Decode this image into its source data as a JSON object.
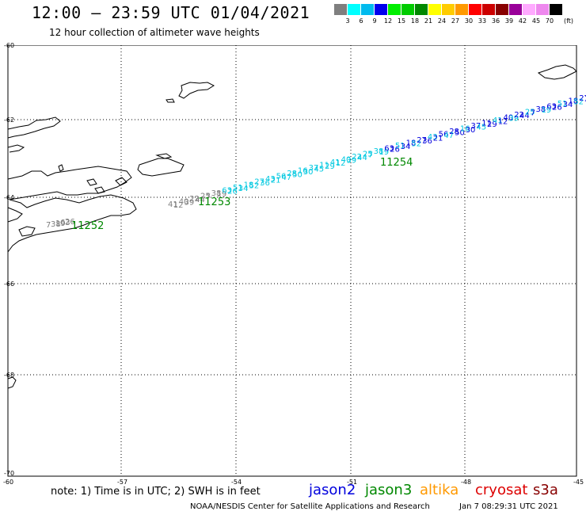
{
  "header": {
    "title": "12:00 – 23:59 UTC 01/04/2021",
    "subtitle": "12 hour collection of altimeter wave heights"
  },
  "color_scale": {
    "labels": [
      "3",
      "6",
      "9",
      "12",
      "15",
      "18",
      "21",
      "24",
      "27",
      "30",
      "33",
      "36",
      "39",
      "42",
      "45",
      "70"
    ],
    "colors": [
      "#7f7f7f",
      "#00ffff",
      "#00bbee",
      "#0000ee",
      "#00ee00",
      "#00cc00",
      "#008800",
      "#ffff00",
      "#ffcc00",
      "#ff9900",
      "#ff0000",
      "#cc0000",
      "#880000",
      "#990099",
      "#ffaaff",
      "#ee88ee",
      "#000000"
    ],
    "unit": "(ft)"
  },
  "axes": {
    "y_labels": [
      "-60",
      "-62",
      "-64",
      "-66",
      "-68",
      "-70"
    ],
    "x_labels": [
      "-60",
      "-57",
      "-54",
      "-51",
      "-48",
      "-45"
    ]
  },
  "track": {
    "cycle_labels": [
      "11252",
      "11253",
      "11254"
    ],
    "colors": {
      "track_gray": "#7f7f7f",
      "track_cyan": "#00c8e0",
      "track_blue": "#0000dd",
      "cycle_green": "#008800"
    }
  },
  "footer": {
    "note": "note: 1) Time is in UTC; 2) SWH is in feet",
    "satellites": [
      {
        "name": "jason2",
        "color": "#0000dd"
      },
      {
        "name": "jason3",
        "color": "#008800"
      },
      {
        "name": "altika",
        "color": "#ff9900"
      },
      {
        "name": "cryosat",
        "color": "#dd0000"
      },
      {
        "name": "s3a",
        "color": "#880000"
      }
    ],
    "credit": "NOAA/NESDIS Center for Satellite Applications and Research",
    "timestamp": "Jan  7 08:29:31 UTC 2021"
  }
}
